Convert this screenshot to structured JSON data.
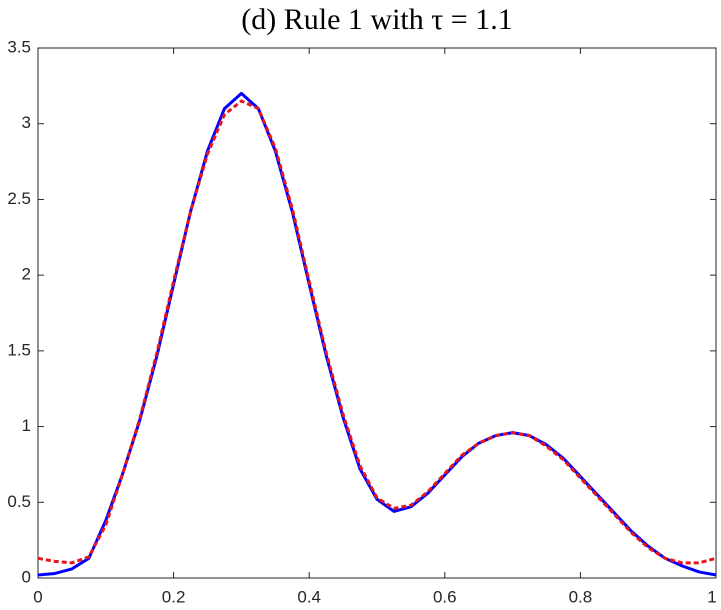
{
  "chart_data": {
    "type": "line",
    "title": "(d) Rule 1 with τ = 1.1",
    "x": [
      0,
      0.025,
      0.05,
      0.075,
      0.1,
      0.125,
      0.15,
      0.175,
      0.2,
      0.225,
      0.25,
      0.275,
      0.3,
      0.325,
      0.35,
      0.375,
      0.4,
      0.425,
      0.45,
      0.475,
      0.5,
      0.525,
      0.55,
      0.575,
      0.6,
      0.625,
      0.65,
      0.675,
      0.7,
      0.725,
      0.75,
      0.775,
      0.8,
      0.825,
      0.85,
      0.875,
      0.9,
      0.925,
      0.95,
      0.975,
      1
    ],
    "series": [
      {
        "color": "#0000ff",
        "dash": "solid",
        "values": [
          0.02,
          0.03,
          0.06,
          0.13,
          0.38,
          0.69,
          1.04,
          1.46,
          1.94,
          2.42,
          2.82,
          3.1,
          3.2,
          3.1,
          2.82,
          2.42,
          1.94,
          1.47,
          1.06,
          0.72,
          0.52,
          0.44,
          0.47,
          0.56,
          0.68,
          0.8,
          0.89,
          0.94,
          0.96,
          0.94,
          0.88,
          0.79,
          0.67,
          0.55,
          0.43,
          0.31,
          0.21,
          0.13,
          0.08,
          0.04,
          0.02
        ]
      },
      {
        "color": "#e8161b",
        "dash": "dashed",
        "values": [
          0.13,
          0.11,
          0.1,
          0.14,
          0.35,
          0.69,
          1.05,
          1.48,
          1.96,
          2.42,
          2.8,
          3.06,
          3.15,
          3.1,
          2.84,
          2.44,
          1.96,
          1.49,
          1.08,
          0.74,
          0.53,
          0.46,
          0.48,
          0.57,
          0.69,
          0.81,
          0.89,
          0.94,
          0.96,
          0.94,
          0.87,
          0.78,
          0.66,
          0.54,
          0.42,
          0.3,
          0.2,
          0.13,
          0.1,
          0.1,
          0.13
        ]
      }
    ],
    "xlim": [
      0,
      1
    ],
    "xticks": [
      0,
      0.2,
      0.4,
      0.6,
      0.8,
      1
    ],
    "ylim": [
      0,
      3.5
    ],
    "yticks": [
      0,
      0.5,
      1,
      1.5,
      2,
      2.5,
      3,
      3.5
    ],
    "grid": false
  }
}
